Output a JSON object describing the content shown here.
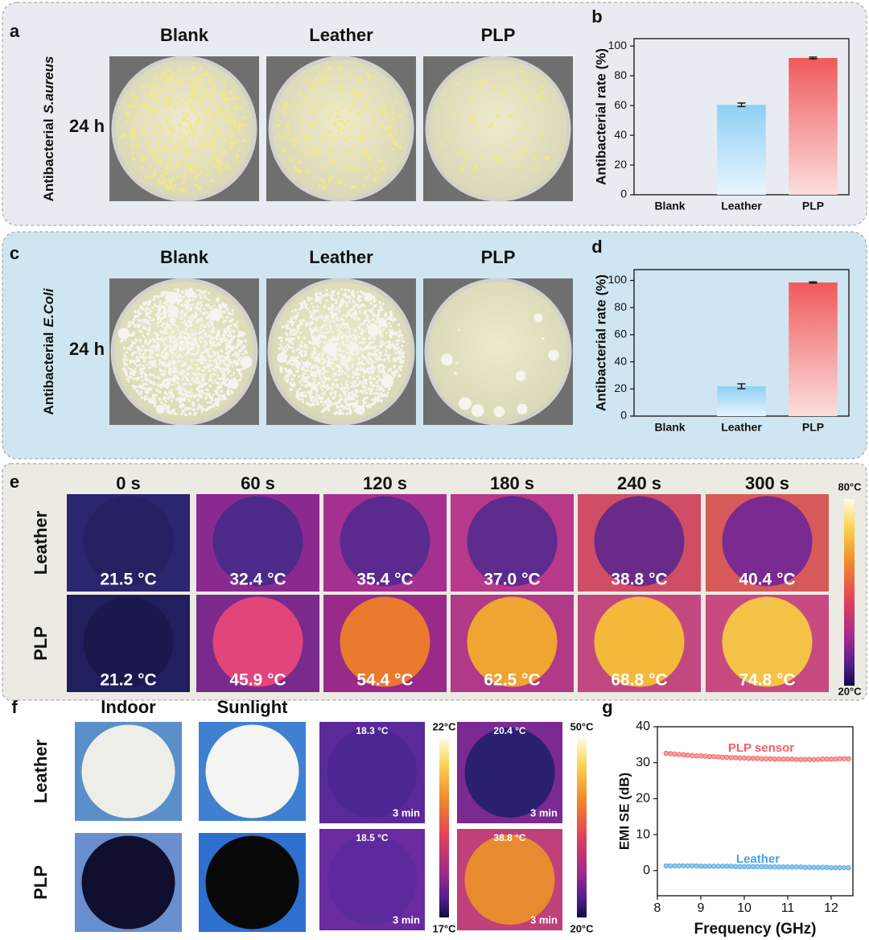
{
  "panel_a": {
    "letter": "a",
    "side_label": [
      "Antibacterial",
      "S.aureus"
    ],
    "time": "24 h",
    "columns": [
      "Blank",
      "Leather",
      "PLP"
    ]
  },
  "panel_c": {
    "letter": "c",
    "side_label": [
      "Antibacterial",
      "E.Coli"
    ],
    "time": "24 h",
    "columns": [
      "Blank",
      "Leather",
      "PLP"
    ]
  },
  "panel_e": {
    "letter": "e",
    "times": [
      "0 s",
      "60 s",
      "120 s",
      "180 s",
      "240 s",
      "300 s"
    ],
    "rows": [
      {
        "label": "Leather",
        "temps": [
          "21.5 °C",
          "32.4 °C",
          "35.4 °C",
          "37.0 °C",
          "38.8 °C",
          "40.4 °C"
        ]
      },
      {
        "label": "PLP",
        "temps": [
          "21.2 °C",
          "45.9 °C",
          "54.4 °C",
          "62.5 °C",
          "68.8 °C",
          "74.8 °C"
        ]
      }
    ],
    "colorbar": [
      "80°C",
      "20°C"
    ]
  },
  "panel_f": {
    "letter": "f",
    "columns": [
      "Indoor",
      "Sunlight"
    ],
    "rows": [
      "Leather",
      "PLP"
    ],
    "thermal": [
      {
        "colorbar": [
          "22°C",
          "17°C"
        ],
        "temps": [
          "18.3 °C",
          "18.5 °C"
        ],
        "time": [
          "3 min",
          "3 min"
        ]
      },
      {
        "colorbar": [
          "50°C",
          "20°C"
        ],
        "temps": [
          "20.4 °C",
          "38.8 °C"
        ],
        "time": [
          "3 min",
          "3 min"
        ]
      }
    ]
  },
  "chart_data": [
    {
      "type": "bar",
      "label": "b",
      "ylabel": "Antibacterial rate (%)",
      "categories": [
        "Blank",
        "Leather",
        "PLP"
      ],
      "values": [
        0,
        60.5,
        92
      ],
      "errors": [
        0,
        1.2,
        0.6
      ],
      "colors": [
        "#8ecff5",
        "#8ecff5",
        "#f05a5a"
      ],
      "ylim": [
        0,
        105
      ],
      "yticks": [
        0,
        20,
        40,
        60,
        80,
        100
      ]
    },
    {
      "type": "bar",
      "label": "d",
      "ylabel": "Antibacterial rate (%)",
      "categories": [
        "Blank",
        "Leather",
        "PLP"
      ],
      "values": [
        0,
        22,
        98.5
      ],
      "errors": [
        0,
        1.8,
        0.5
      ],
      "colors": [
        "#8ecff5",
        "#8ecff5",
        "#f05a5a"
      ],
      "ylim": [
        0,
        108
      ],
      "yticks": [
        0,
        20,
        40,
        60,
        80,
        100
      ]
    },
    {
      "type": "scatter",
      "label": "g",
      "xlabel": "Frequency (GHz)",
      "ylabel": "EMI SE (dB)",
      "x": [
        8.2,
        8.3,
        8.4,
        8.5,
        8.6,
        8.7,
        8.8,
        8.9,
        9,
        9.1,
        9.2,
        9.3,
        9.4,
        9.5,
        9.6,
        9.7,
        9.8,
        9.9,
        10,
        10.1,
        10.2,
        10.3,
        10.4,
        10.5,
        10.6,
        10.7,
        10.8,
        10.9,
        11,
        11.1,
        11.2,
        11.3,
        11.4,
        11.5,
        11.6,
        11.7,
        11.8,
        11.9,
        12,
        12.1,
        12.2,
        12.3,
        12.4
      ],
      "series": [
        {
          "name": "PLP sensor",
          "color": "#f06060",
          "values": [
            32.6,
            32.5,
            32.4,
            32.3,
            32.2,
            32.1,
            32,
            31.9,
            31.9,
            31.8,
            31.7,
            31.7,
            31.6,
            31.5,
            31.5,
            31.4,
            31.4,
            31.3,
            31.3,
            31.2,
            31.2,
            31.2,
            31.1,
            31.1,
            31.1,
            31,
            31,
            31,
            31,
            31,
            30.9,
            30.9,
            30.9,
            30.9,
            30.9,
            30.9,
            31,
            31,
            31,
            31,
            31.1,
            31.1,
            31.1
          ]
        },
        {
          "name": "Leather",
          "color": "#4aa3e0",
          "values": [
            1.3,
            1.3,
            1.3,
            1.3,
            1.3,
            1.3,
            1.3,
            1.3,
            1.2,
            1.2,
            1.2,
            1.2,
            1.2,
            1.2,
            1.2,
            1.2,
            1.1,
            1.1,
            1.1,
            1.1,
            1.1,
            1.1,
            1.1,
            1.1,
            1,
            1,
            1,
            1,
            1,
            1,
            1,
            1,
            0.9,
            0.9,
            0.9,
            0.9,
            0.9,
            0.9,
            0.8,
            0.8,
            0.8,
            0.8,
            0.8
          ]
        }
      ],
      "xlim": [
        8,
        12.5
      ],
      "ylim": [
        -7,
        40
      ],
      "xticks": [
        8,
        9,
        10,
        11,
        12
      ],
      "yticks": [
        0,
        10,
        20,
        30,
        40
      ]
    }
  ]
}
